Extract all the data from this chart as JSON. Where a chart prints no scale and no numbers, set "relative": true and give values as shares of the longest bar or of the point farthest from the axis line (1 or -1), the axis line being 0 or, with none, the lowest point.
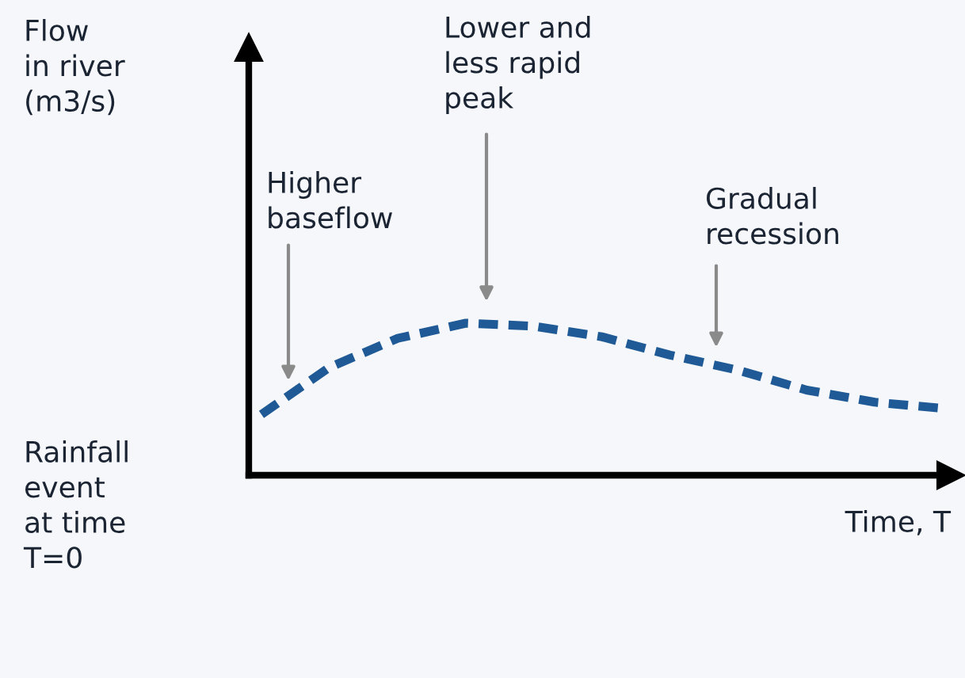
{
  "chart_data": {
    "type": "line",
    "relative": true,
    "tick_labels": false,
    "line_style": "dashed",
    "color": "#1f5a96",
    "xlabel": "Time, T",
    "categories": [
      null,
      null,
      null,
      null,
      null,
      null,
      null,
      null,
      null,
      null,
      null
    ],
    "values": [
      0.4,
      0.71,
      0.9,
      1.0,
      0.98,
      0.91,
      0.79,
      0.69,
      0.56,
      0.48,
      0.44
    ],
    "annotations": [
      "Flow\nin river\n(m3/s)",
      "Rainfall\nevent\nat time\nT=0",
      "Higher\nbaseflow",
      "Lower and\nless rapid\npeak",
      "Gradual\nrecession"
    ]
  }
}
